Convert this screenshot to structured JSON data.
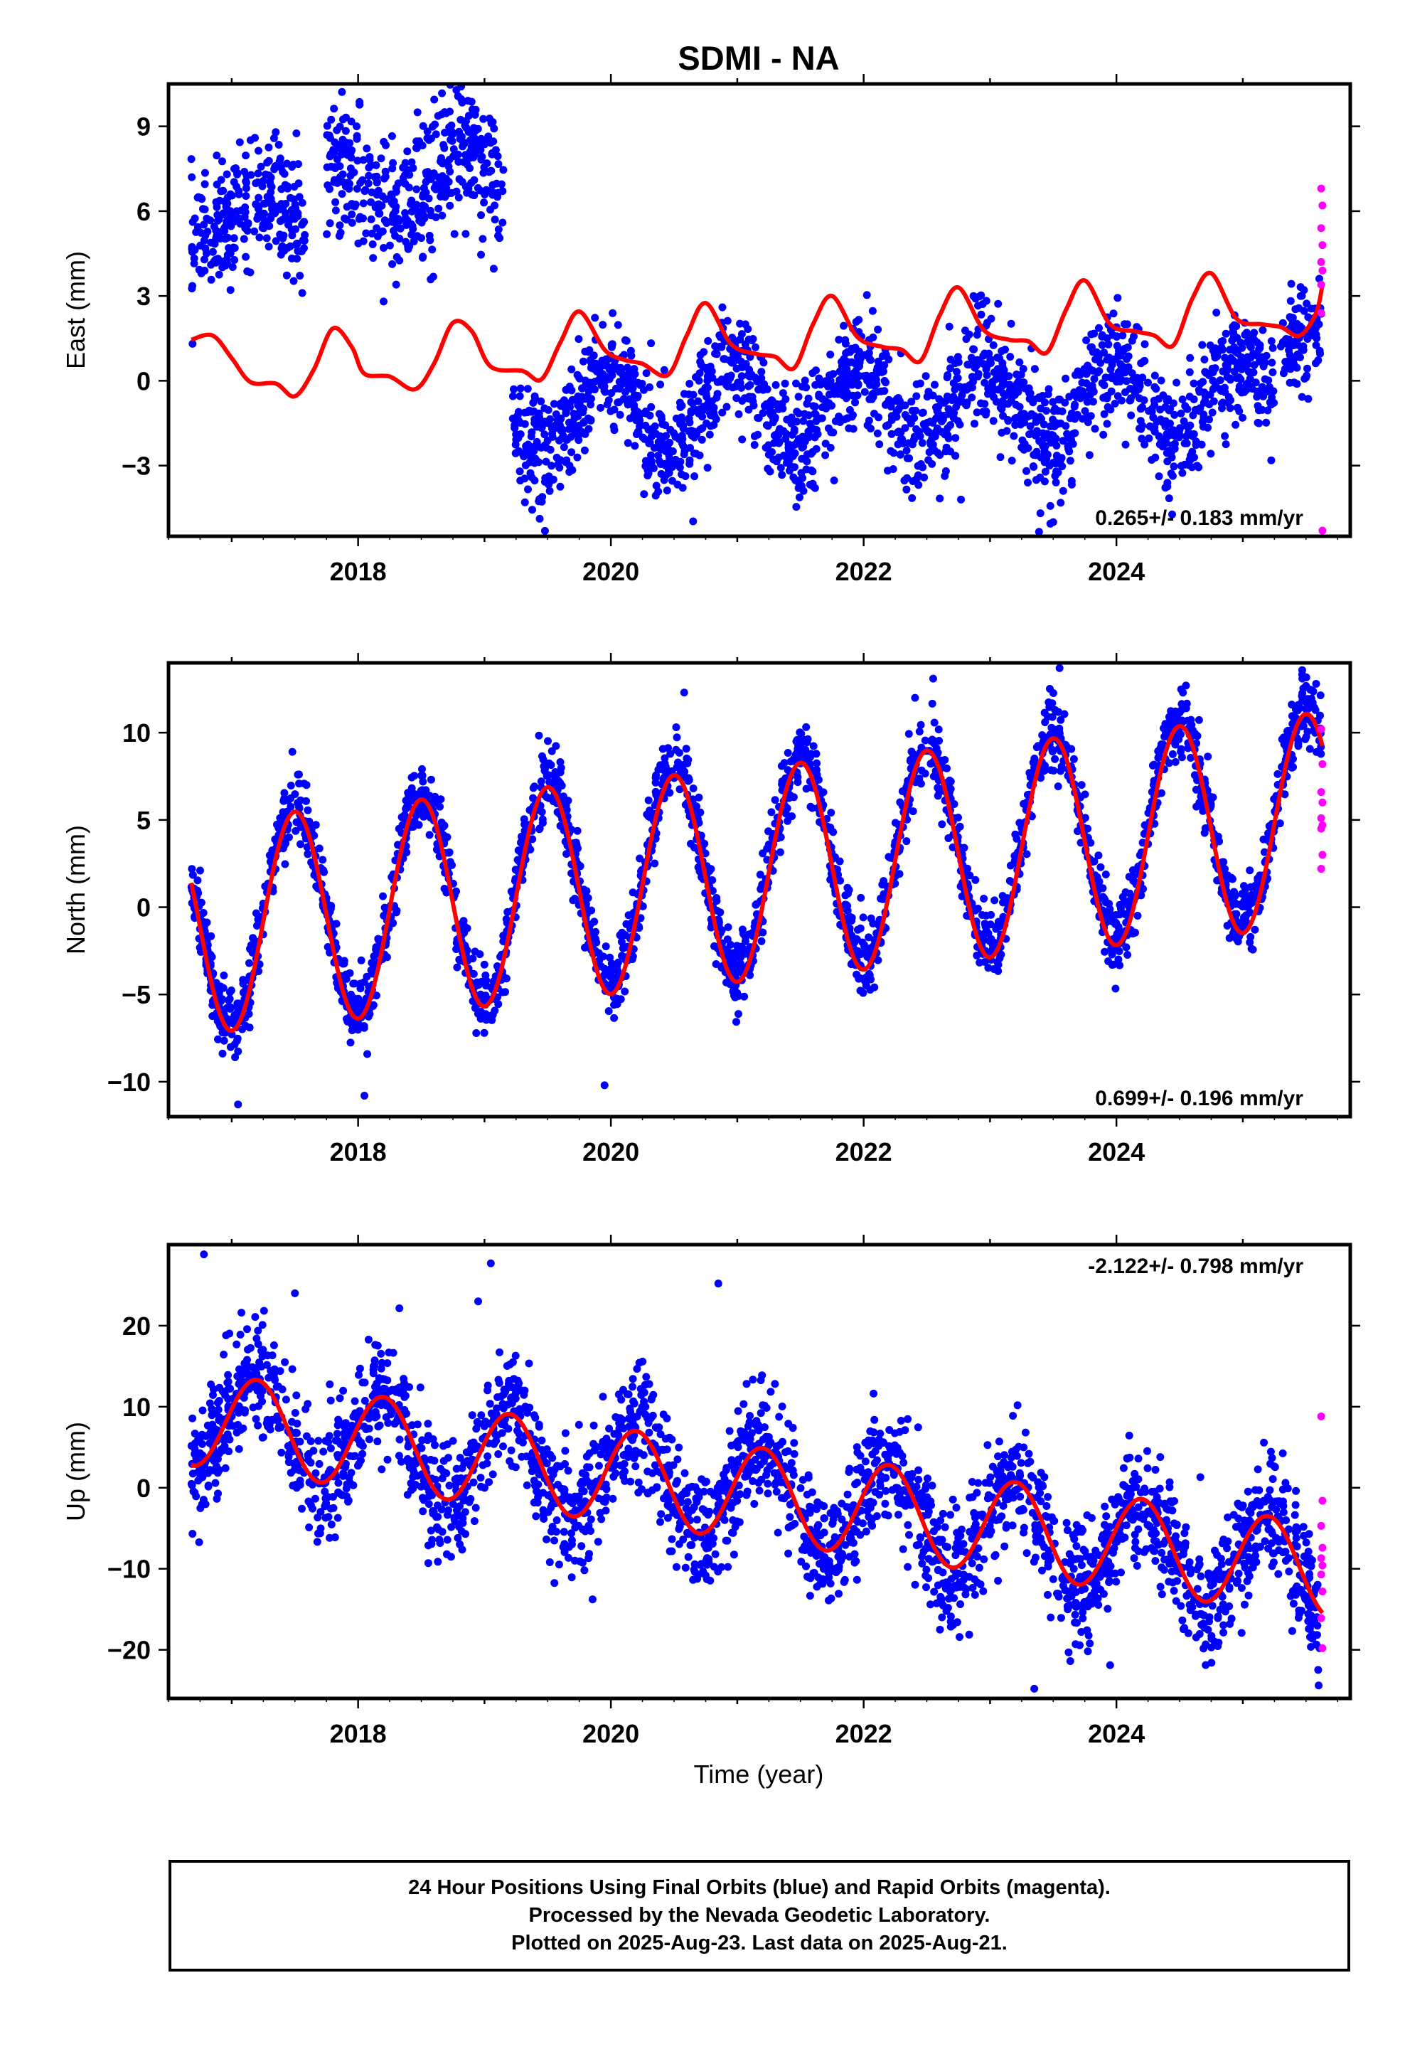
{
  "title": "SDMI - NA",
  "colors": {
    "final": "#0000ff",
    "rapid": "#ff00ff",
    "model": "#ff0000",
    "frame": "#000000"
  },
  "xlabel": "Time (year)",
  "footer": {
    "line1": "24 Hour Positions Using Final Orbits (blue) and Rapid Orbits (magenta).",
    "line2": "Processed by the Nevada Geodetic Laboratory.",
    "line3": "Plotted on 2025-Aug-23. Last data on 2025-Aug-21."
  },
  "chart_data": [
    {
      "type": "scatter",
      "component": "east",
      "ylabel": "East (mm)",
      "velocity_label": "0.265+/- 0.183 mm/yr",
      "velocity_label_position": "bottom-right",
      "xlim": [
        2016.5,
        2025.85
      ],
      "ylim": [
        -5.5,
        10.5
      ],
      "xticks": [
        2018,
        2020,
        2022,
        2024
      ],
      "yticks": [
        -3,
        0,
        3,
        6,
        9
      ],
      "ytick_labels": [
        "−3",
        "0",
        "3",
        "6",
        "9"
      ],
      "series": [
        {
          "kind": "final-orbit-positions",
          "segments": [
            {
              "start": 2016.68,
              "end": 2017.58,
              "mean": 5.8,
              "amp": 0.9,
              "phase": 0.0,
              "trend": 0.0,
              "spread": 1.05
            },
            {
              "start": 2017.75,
              "end": 2019.15,
              "mean": 6.4,
              "amp": 1.1,
              "phase": 0.55,
              "trend": 0.7,
              "spread": 1.25
            },
            {
              "start": 2019.22,
              "end": 2025.25,
              "mean": -1.1,
              "amp": 1.4,
              "phase": 0.72,
              "trend": 0.07,
              "spread": 1.0
            },
            {
              "start": 2025.3,
              "end": 2025.62,
              "mean": 1.5,
              "amp": 0.5,
              "phase": 0.72,
              "trend": 3.0,
              "spread": 1.0
            }
          ],
          "outliers": [
            [
              2023.5,
              -5.0
            ],
            [
              2019.32,
              -4.3
            ],
            [
              2022.77,
              -4.2
            ]
          ]
        },
        {
          "kind": "rapid-orbit-positions",
          "points": [
            [
              2025.62,
              6.8
            ],
            [
              2025.63,
              6.2
            ],
            [
              2025.62,
              5.4
            ],
            [
              2025.63,
              4.8
            ],
            [
              2025.62,
              4.2
            ],
            [
              2025.63,
              3.9
            ],
            [
              2025.62,
              3.4
            ],
            [
              2025.62,
              2.4
            ],
            [
              2025.63,
              -5.3
            ]
          ]
        },
        {
          "kind": "model-fit",
          "points": [
            [
              2016.68,
              1.45
            ],
            [
              2016.85,
              1.6
            ],
            [
              2017.0,
              0.8
            ],
            [
              2017.15,
              -0.05
            ],
            [
              2017.35,
              -0.1
            ],
            [
              2017.5,
              -0.55
            ],
            [
              2017.65,
              0.4
            ],
            [
              2017.8,
              1.85
            ],
            [
              2017.95,
              1.2
            ],
            [
              2018.05,
              0.25
            ],
            [
              2018.25,
              0.15
            ],
            [
              2018.45,
              -0.3
            ],
            [
              2018.6,
              0.6
            ],
            [
              2018.75,
              2.05
            ],
            [
              2018.9,
              1.75
            ],
            [
              2019.05,
              0.5
            ],
            [
              2019.3,
              0.35
            ],
            [
              2019.45,
              0.05
            ],
            [
              2019.6,
              1.35
            ],
            [
              2019.75,
              2.45
            ],
            [
              2019.95,
              1.1
            ],
            [
              2020.1,
              0.75
            ],
            [
              2020.25,
              0.6
            ],
            [
              2020.45,
              0.2
            ],
            [
              2020.6,
              1.6
            ],
            [
              2020.75,
              2.75
            ],
            [
              2020.95,
              1.3
            ],
            [
              2021.15,
              0.95
            ],
            [
              2021.3,
              0.85
            ],
            [
              2021.45,
              0.45
            ],
            [
              2021.6,
              2.0
            ],
            [
              2021.75,
              3.0
            ],
            [
              2021.95,
              1.55
            ],
            [
              2022.15,
              1.2
            ],
            [
              2022.3,
              1.1
            ],
            [
              2022.45,
              0.7
            ],
            [
              2022.6,
              2.3
            ],
            [
              2022.75,
              3.3
            ],
            [
              2022.95,
              1.8
            ],
            [
              2023.15,
              1.45
            ],
            [
              2023.3,
              1.4
            ],
            [
              2023.45,
              1.0
            ],
            [
              2023.6,
              2.5
            ],
            [
              2023.75,
              3.55
            ],
            [
              2023.95,
              2.0
            ],
            [
              2024.15,
              1.75
            ],
            [
              2024.3,
              1.6
            ],
            [
              2024.45,
              1.25
            ],
            [
              2024.6,
              2.9
            ],
            [
              2024.75,
              3.8
            ],
            [
              2024.95,
              2.2
            ],
            [
              2025.15,
              2.0
            ],
            [
              2025.3,
              1.9
            ],
            [
              2025.45,
              1.6
            ],
            [
              2025.58,
              2.4
            ],
            [
              2025.63,
              3.4
            ]
          ]
        }
      ]
    },
    {
      "type": "scatter",
      "component": "north",
      "ylabel": "North (mm)",
      "velocity_label": "0.699+/- 0.196 mm/yr",
      "velocity_label_position": "bottom-right",
      "xlim": [
        2016.5,
        2025.85
      ],
      "ylim": [
        -12,
        14
      ],
      "xticks": [
        2018,
        2020,
        2022,
        2024
      ],
      "yticks": [
        -10,
        -5,
        0,
        5,
        10
      ],
      "ytick_labels": [
        "−10",
        "−5",
        "0",
        "5",
        "10"
      ],
      "series": [
        {
          "kind": "final-orbit-positions",
          "segments": [
            {
              "start": 2016.68,
              "end": 2025.62,
              "mean": -0.9,
              "amp": 6.0,
              "phase": 0.25,
              "trend": 0.72,
              "spread": 1.0
            }
          ],
          "outliers": [
            [
              2016.75,
              2.1
            ],
            [
              2017.05,
              -11.3
            ],
            [
              2017.48,
              8.9
            ],
            [
              2020.58,
              12.3
            ],
            [
              2022.55,
              13.1
            ],
            [
              2023.55,
              13.7
            ],
            [
              2024.55,
              12.7
            ],
            [
              2025.58,
              12.8
            ],
            [
              2018.05,
              -10.8
            ],
            [
              2019.95,
              -10.2
            ]
          ]
        },
        {
          "kind": "rapid-orbit-positions",
          "points": [
            [
              2025.62,
              10.2
            ],
            [
              2025.63,
              8.2
            ],
            [
              2025.62,
              6.6
            ],
            [
              2025.63,
              6.0
            ],
            [
              2025.62,
              5.1
            ],
            [
              2025.63,
              4.7
            ],
            [
              2025.62,
              4.5
            ],
            [
              2025.63,
              3.0
            ],
            [
              2025.62,
              2.2
            ]
          ]
        },
        {
          "kind": "model-fit",
          "amp": 6.1,
          "mean": -1.2,
          "trend": 0.7,
          "phase": 0.25,
          "range": [
            2016.68,
            2025.63
          ]
        }
      ]
    },
    {
      "type": "scatter",
      "component": "up",
      "ylabel": "Up (mm)",
      "velocity_label": "-2.122+/- 0.798 mm/yr",
      "velocity_label_position": "top-right",
      "xlim": [
        2016.5,
        2025.85
      ],
      "ylim": [
        -26,
        30
      ],
      "xticks": [
        2018,
        2020,
        2022,
        2024
      ],
      "yticks": [
        -20,
        -10,
        0,
        10,
        20
      ],
      "ytick_labels": [
        "−20",
        "−10",
        "0",
        "10",
        "20"
      ],
      "series": [
        {
          "kind": "final-orbit-positions",
          "segments": [
            {
              "start": 2016.68,
              "end": 2025.62,
              "mean": 8.5,
              "amp": 6.0,
              "phase": 0.95,
              "trend": -2.1,
              "spread": 3.6
            }
          ],
          "outliers": [
            [
              2016.78,
              28.8
            ],
            [
              2019.05,
              27.7
            ],
            [
              2020.85,
              25.2
            ],
            [
              2023.35,
              -24.8
            ],
            [
              2025.6,
              -24.4
            ],
            [
              2018.95,
              23.0
            ],
            [
              2017.5,
              24.0
            ],
            [
              2023.95,
              -21.9
            ]
          ]
        },
        {
          "kind": "rapid-orbit-positions",
          "points": [
            [
              2025.62,
              8.8
            ],
            [
              2025.63,
              -1.6
            ],
            [
              2025.62,
              -4.7
            ],
            [
              2025.63,
              -7.4
            ],
            [
              2025.62,
              -8.7
            ],
            [
              2025.63,
              -9.6
            ],
            [
              2025.62,
              -10.7
            ],
            [
              2025.63,
              -12.8
            ],
            [
              2025.62,
              -16.1
            ],
            [
              2025.63,
              -19.8
            ]
          ]
        },
        {
          "kind": "model-fit",
          "amp": 5.8,
          "mean": 8.6,
          "trend": -2.1,
          "phase": 0.95,
          "range": [
            2016.68,
            2025.63
          ]
        }
      ]
    }
  ]
}
